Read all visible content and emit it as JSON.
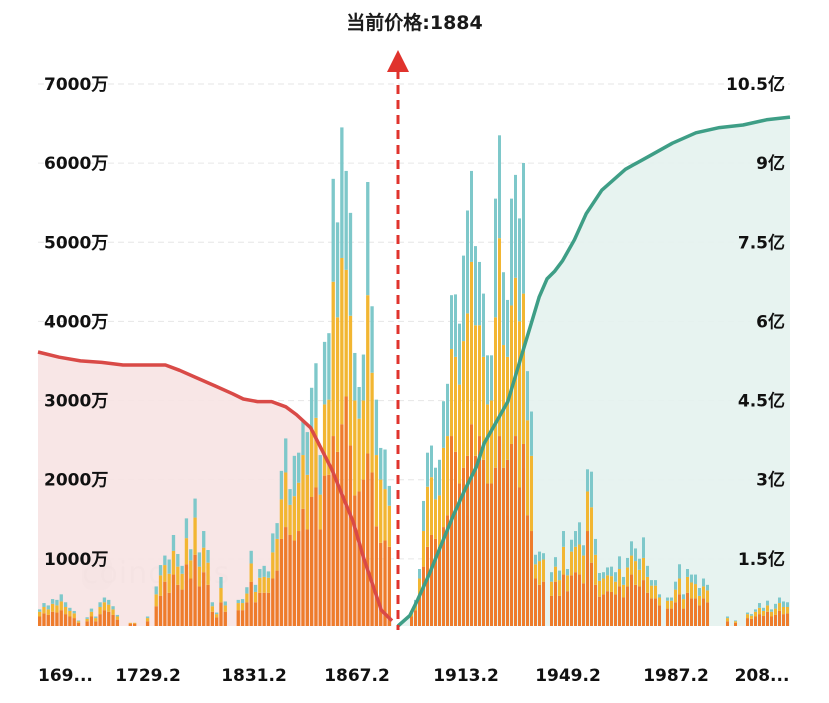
{
  "current_price_label": "当前价格:1884",
  "watermark": "coinglass",
  "colors": {
    "bid_curve": "#d94a47",
    "bid_area": "#f7e3e3",
    "ask_curve": "#3e9e86",
    "ask_area": "#e4f2ee",
    "marker": "#e0332d",
    "bar_bottom": "#ee7c2c",
    "bar_middle": "#f2b632",
    "bar_top": "#7ec8ca",
    "grid": "#e6e6e6"
  },
  "chart_data": {
    "type": "bar",
    "title": "当前价格:1884",
    "current_price": 1884,
    "x_tick_labels": [
      "169...",
      "1729.2",
      "1831.2",
      "1867.2",
      "1913.2",
      "1949.2",
      "1987.2",
      "208..."
    ],
    "y_left_ticks": [
      "7000万",
      "6000万",
      "5000万",
      "4000万",
      "3000万",
      "2000万",
      "1000万"
    ],
    "y_right_ticks": [
      "10.5亿",
      "9亿",
      "7.5亿",
      "6亿",
      "4.5亿",
      "3亿",
      "1.5亿"
    ],
    "ylim_left": [
      0,
      70000000
    ],
    "ylim_right": [
      0,
      1050000000
    ],
    "grid": true,
    "bar_series": [
      "bottom",
      "middle",
      "top"
    ],
    "bars_left": [
      [
        120,
        60,
        30
      ],
      [
        160,
        80,
        50
      ],
      [
        140,
        70,
        50
      ],
      [
        180,
        100,
        60
      ],
      [
        170,
        90,
        70
      ],
      [
        200,
        110,
        90
      ],
      [
        150,
        90,
        60
      ],
      [
        120,
        70,
        40
      ],
      [
        100,
        60,
        30
      ],
      [
        40,
        20,
        10
      ],
      [
        0,
        0,
        0
      ],
      [
        60,
        30,
        20
      ],
      [
        120,
        60,
        40
      ],
      [
        60,
        40,
        20
      ],
      [
        150,
        90,
        60
      ],
      [
        200,
        100,
        60
      ],
      [
        180,
        90,
        60
      ],
      [
        140,
        70,
        40
      ],
      [
        80,
        40,
        20
      ],
      [
        0,
        0,
        0
      ],
      [
        0,
        0,
        0
      ],
      [
        30,
        10,
        0
      ],
      [
        30,
        10,
        0
      ],
      [
        0,
        0,
        0
      ],
      [
        0,
        0,
        0
      ],
      [
        60,
        40,
        20
      ],
      [
        0,
        0,
        0
      ],
      [
        250,
        150,
        100
      ],
      [
        380,
        260,
        130
      ],
      [
        560,
        210,
        120
      ],
      [
        420,
        240,
        180
      ],
      [
        650,
        300,
        200
      ],
      [
        520,
        230,
        160
      ],
      [
        460,
        200,
        100
      ],
      [
        780,
        330,
        250
      ],
      [
        600,
        230,
        140
      ],
      [
        900,
        470,
        240
      ],
      [
        500,
        250,
        180
      ],
      [
        680,
        310,
        210
      ],
      [
        520,
        280,
        160
      ],
      [
        180,
        70,
        50
      ],
      [
        110,
        40,
        20
      ],
      [
        300,
        180,
        140
      ],
      [
        180,
        80,
        50
      ],
      [
        0,
        0,
        0
      ],
      [
        0,
        0,
        0
      ],
      [
        200,
        90,
        40
      ],
      [
        200,
        90,
        50
      ],
      [
        300,
        110,
        80
      ],
      [
        560,
        230,
        160
      ],
      [
        300,
        130,
        90
      ],
      [
        420,
        190,
        110
      ],
      [
        420,
        200,
        140
      ],
      [
        420,
        190,
        80
      ],
      [
        600,
        330,
        240
      ],
      [
        700,
        400,
        200
      ],
      [
        1100,
        500,
        360
      ],
      [
        1250,
        690,
        430
      ],
      [
        1150,
        380,
        200
      ],
      [
        1080,
        560,
        510
      ],
      [
        1200,
        610,
        380
      ],
      [
        1480,
        680,
        440
      ],
      [
        1220,
        690,
        540
      ],
      [
        1630,
        860,
        520
      ],
      [
        1750,
        880,
        690
      ],
      [
        1220,
        440,
        500
      ],
      [
        1900,
        900,
        790
      ],
      [
        1910,
        950,
        840
      ],
      [
        2400,
        1950,
        1300
      ],
      [
        2200,
        1700,
        1200
      ],
      [
        2550,
        2100,
        1650
      ],
      [
        2900,
        1600,
        1250
      ],
      [
        2280,
        1640,
        1300
      ],
      [
        1650,
        1200,
        600
      ],
      [
        1700,
        920,
        400
      ],
      [
        1850,
        1000,
        580
      ],
      [
        2180,
        2000,
        1430
      ],
      [
        1940,
        1260,
        840
      ],
      [
        1260,
        900,
        700
      ],
      [
        1050,
        800,
        400
      ],
      [
        1080,
        650,
        500
      ],
      [
        1000,
        520,
        250
      ]
    ],
    "bars_right": [
      [
        120,
        50,
        20
      ],
      [
        200,
        90,
        40
      ],
      [
        400,
        200,
        120
      ],
      [
        750,
        450,
        380
      ],
      [
        1000,
        760,
        430
      ],
      [
        1150,
        730,
        400
      ],
      [
        1100,
        500,
        400
      ],
      [
        1000,
        650,
        450
      ],
      [
        1250,
        1000,
        590
      ],
      [
        1400,
        1000,
        660
      ],
      [
        2400,
        1100,
        680
      ],
      [
        2200,
        1200,
        790
      ],
      [
        1800,
        1250,
        770
      ],
      [
        2000,
        1600,
        1080
      ],
      [
        2150,
        1800,
        1300
      ],
      [
        2550,
        2050,
        1150
      ],
      [
        2150,
        1650,
        1000
      ],
      [
        2400,
        1400,
        800
      ],
      [
        2100,
        1300,
        800
      ],
      [
        1800,
        1000,
        620
      ],
      [
        1800,
        1050,
        570
      ],
      [
        2000,
        1900,
        1500
      ],
      [
        2400,
        2500,
        1300
      ],
      [
        2000,
        1550,
        920
      ],
      [
        2100,
        1300,
        720
      ],
      [
        2300,
        1750,
        1350
      ],
      [
        2400,
        2000,
        1300
      ],
      [
        1750,
        2100,
        1300
      ],
      [
        2300,
        1900,
        1650
      ],
      [
        1400,
        1200,
        620
      ],
      [
        1200,
        950,
        560
      ],
      [
        600,
        180,
        120
      ],
      [
        520,
        300,
        120
      ],
      [
        560,
        280,
        80
      ],
      [
        0,
        0,
        0
      ],
      [
        380,
        180,
        120
      ],
      [
        560,
        190,
        120
      ],
      [
        380,
        200,
        120
      ],
      [
        650,
        350,
        200
      ],
      [
        440,
        200,
        80
      ],
      [
        640,
        300,
        150
      ],
      [
        680,
        320,
        200
      ],
      [
        650,
        380,
        280
      ],
      [
        540,
        350,
        130
      ],
      [
        1200,
        500,
        280
      ],
      [
        800,
        700,
        450
      ],
      [
        520,
        380,
        200
      ],
      [
        370,
        200,
        100
      ],
      [
        400,
        200,
        80
      ],
      [
        440,
        200,
        100
      ],
      [
        430,
        200,
        120
      ],
      [
        400,
        160,
        120
      ],
      [
        500,
        220,
        160
      ],
      [
        360,
        160,
        100
      ],
      [
        500,
        240,
        120
      ],
      [
        650,
        240,
        180
      ],
      [
        520,
        300,
        160
      ],
      [
        500,
        210,
        140
      ],
      [
        580,
        280,
        260
      ],
      [
        420,
        200,
        140
      ],
      [
        350,
        160,
        70
      ],
      [
        350,
        160,
        70
      ],
      [
        260,
        100,
        40
      ],
      [
        0,
        0,
        0
      ],
      [
        220,
        100,
        40
      ],
      [
        220,
        100,
        40
      ],
      [
        300,
        160,
        100
      ],
      [
        400,
        200,
        180
      ],
      [
        220,
        120,
        60
      ],
      [
        420,
        200,
        100
      ],
      [
        350,
        200,
        100
      ],
      [
        350,
        180,
        120
      ],
      [
        260,
        120,
        100
      ],
      [
        350,
        150,
        100
      ],
      [
        300,
        150,
        70
      ],
      [
        0,
        0,
        0
      ],
      [
        0,
        0,
        0
      ],
      [
        0,
        0,
        0
      ],
      [
        0,
        0,
        0
      ],
      [
        60,
        40,
        20
      ],
      [
        0,
        0,
        0
      ],
      [
        40,
        20,
        10
      ],
      [
        0,
        0,
        0
      ],
      [
        0,
        0,
        0
      ],
      [
        100,
        50,
        20
      ],
      [
        90,
        40,
        20
      ],
      [
        120,
        60,
        30
      ],
      [
        150,
        80,
        60
      ],
      [
        130,
        60,
        40
      ],
      [
        180,
        80,
        60
      ],
      [
        120,
        60,
        30
      ],
      [
        140,
        80,
        60
      ],
      [
        190,
        100,
        70
      ],
      [
        150,
        90,
        70
      ],
      [
        160,
        80,
        60
      ]
    ],
    "cumulative_bids": [
      [
        0,
        5.25
      ],
      [
        0.06,
        5.15
      ],
      [
        0.12,
        5.08
      ],
      [
        0.18,
        5.05
      ],
      [
        0.24,
        5.0
      ],
      [
        0.3,
        5.0
      ],
      [
        0.36,
        5.0
      ],
      [
        0.4,
        4.9
      ],
      [
        0.45,
        4.75
      ],
      [
        0.5,
        4.6
      ],
      [
        0.55,
        4.45
      ],
      [
        0.58,
        4.35
      ],
      [
        0.62,
        4.3
      ],
      [
        0.66,
        4.3
      ],
      [
        0.7,
        4.2
      ],
      [
        0.73,
        4.05
      ],
      [
        0.77,
        3.8
      ],
      [
        0.8,
        3.4
      ],
      [
        0.83,
        3.0
      ],
      [
        0.86,
        2.5
      ],
      [
        0.89,
        2.0
      ],
      [
        0.92,
        1.3
      ],
      [
        0.95,
        0.7
      ],
      [
        0.97,
        0.3
      ],
      [
        1.0,
        0.1
      ]
    ],
    "cumulative_asks": [
      [
        0,
        0.0
      ],
      [
        0.03,
        0.2
      ],
      [
        0.05,
        0.5
      ],
      [
        0.08,
        1.0
      ],
      [
        0.11,
        1.55
      ],
      [
        0.14,
        2.1
      ],
      [
        0.17,
        2.6
      ],
      [
        0.2,
        3.05
      ],
      [
        0.22,
        3.5
      ],
      [
        0.25,
        3.9
      ],
      [
        0.28,
        4.3
      ],
      [
        0.3,
        4.8
      ],
      [
        0.32,
        5.3
      ],
      [
        0.34,
        5.8
      ],
      [
        0.36,
        6.3
      ],
      [
        0.38,
        6.65
      ],
      [
        0.4,
        6.8
      ],
      [
        0.42,
        7.0
      ],
      [
        0.45,
        7.4
      ],
      [
        0.48,
        7.9
      ],
      [
        0.52,
        8.35
      ],
      [
        0.58,
        8.75
      ],
      [
        0.64,
        9.0
      ],
      [
        0.7,
        9.25
      ],
      [
        0.76,
        9.45
      ],
      [
        0.82,
        9.55
      ],
      [
        0.88,
        9.6
      ],
      [
        0.94,
        9.7
      ],
      [
        1.0,
        9.75
      ]
    ]
  }
}
